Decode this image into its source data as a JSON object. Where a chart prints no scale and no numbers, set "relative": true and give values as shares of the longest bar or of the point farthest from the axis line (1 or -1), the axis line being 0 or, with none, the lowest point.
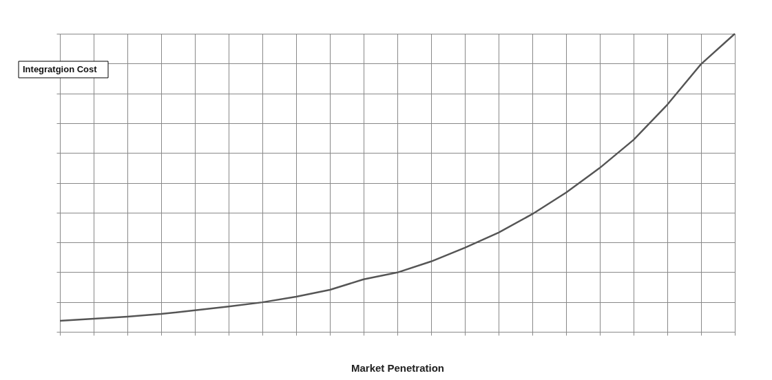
{
  "chart_data": {
    "type": "line",
    "relative": true,
    "xlabel": "Market Penetration",
    "ylabel": "Integratgion Cost",
    "grid": true,
    "marker": "none",
    "line_style": "solid",
    "categories": [
      null,
      null,
      null,
      null,
      null,
      null,
      null,
      null,
      null,
      null,
      null,
      null,
      null,
      null,
      null,
      null,
      null,
      null,
      null,
      null,
      null
    ],
    "series": [
      {
        "color": "#555555",
        "values": [
          0.037,
          0.044,
          0.051,
          0.06,
          0.072,
          0.085,
          0.099,
          0.118,
          0.141,
          0.176,
          0.199,
          0.236,
          0.282,
          0.333,
          0.395,
          0.467,
          0.55,
          0.644,
          0.762,
          0.898,
          1.0
        ]
      }
    ]
  }
}
